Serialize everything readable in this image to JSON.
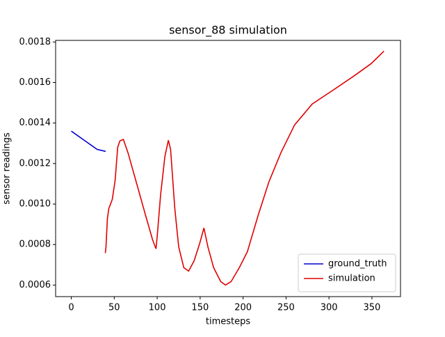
{
  "chart_data": {
    "type": "line",
    "title": "sensor_88 simulation",
    "x_label": "timesteps",
    "y_label": "sensor readings",
    "series": [
      {
        "name": "ground_truth",
        "color": "#0000cc",
        "x": [
          0,
          30,
          40
        ],
        "values": [
          0.00136,
          0.00127,
          0.00126
        ]
      },
      {
        "name": "simulation",
        "color": "#e00000",
        "x": [
          39.6,
          40.4,
          42,
          43.7,
          47.7,
          51,
          54,
          56.6,
          60.6,
          66,
          74,
          86.5,
          94.6,
          98.6,
          100,
          104,
          109,
          113,
          115.6,
          120.5,
          125,
          131,
          136.6,
          143,
          149.5,
          154.4,
          159,
          165.7,
          174,
          179.5,
          186,
          195.6,
          205,
          217.5,
          230,
          244,
          260,
          280.5,
          305,
          329,
          349,
          364
        ],
        "values": [
          0.000758,
          0.000789,
          0.000927,
          0.000978,
          0.001023,
          0.001116,
          0.00128,
          0.001312,
          0.001319,
          0.001253,
          0.001133,
          0.000944,
          0.000824,
          0.000779,
          0.00084,
          0.001047,
          0.001236,
          0.001315,
          0.00127,
          0.000978,
          0.000789,
          0.000686,
          0.000669,
          0.00072,
          0.000806,
          0.000882,
          0.000789,
          0.000686,
          0.000617,
          0.0006,
          0.000617,
          0.000686,
          0.000765,
          0.000944,
          0.001109,
          0.001253,
          0.001391,
          0.001494,
          0.001563,
          0.001632,
          0.001693,
          0.001755
        ]
      }
    ],
    "xlim": [
      -18.25,
      383.25
    ],
    "xticks": [
      0,
      50,
      100,
      150,
      200,
      250,
      300,
      350
    ],
    "ylim": [
      0.000543,
      0.001808
    ],
    "yticks": [
      0.0006,
      0.0008,
      {
        "value": 0.001,
        "label": "0.0010"
      },
      0.0012,
      0.0014,
      0.0016,
      0.0018
    ],
    "legend": "lower right",
    "grid": false
  }
}
